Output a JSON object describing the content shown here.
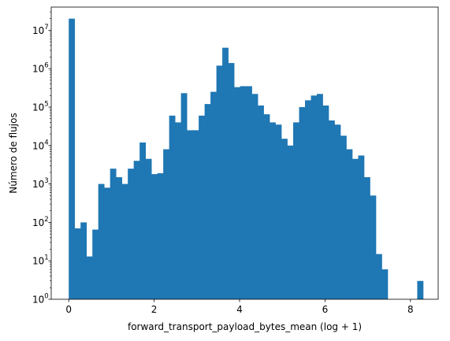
{
  "chart_data": {
    "type": "bar",
    "title": "",
    "xlabel": "forward_transport_payload_bytes_mean (log + 1)",
    "ylabel": "Número de flujos",
    "xlim": [
      -0.41,
      8.65
    ],
    "ylim": [
      1,
      40000000
    ],
    "yscale": "log",
    "grid": false,
    "bar_color": "#1f77b4",
    "bin_start": 0.0,
    "bin_width": 0.1383,
    "counts": [
      20000000,
      70,
      100,
      13,
      65,
      1000,
      800,
      2500,
      1500,
      1000,
      2500,
      4000,
      12000,
      4500,
      1800,
      1900,
      8000,
      60000,
      40000,
      230000,
      25000,
      25000,
      60000,
      120000,
      250000,
      1200000,
      3500000,
      1400000,
      330000,
      350000,
      350000,
      220000,
      110000,
      65000,
      40000,
      35000,
      15000,
      10000,
      40000,
      100000,
      150000,
      200000,
      220000,
      110000,
      45000,
      35000,
      18000,
      8000,
      4500,
      5500,
      1500,
      500,
      15,
      6,
      1,
      1,
      1,
      1,
      1,
      3
    ],
    "x_ticks": [
      0,
      2,
      4,
      6,
      8
    ],
    "y_ticks": [
      {
        "value": 1,
        "base": "10",
        "exp": "0"
      },
      {
        "value": 10,
        "base": "10",
        "exp": "1"
      },
      {
        "value": 100,
        "base": "10",
        "exp": "2"
      },
      {
        "value": 1000,
        "base": "10",
        "exp": "3"
      },
      {
        "value": 10000,
        "base": "10",
        "exp": "4"
      },
      {
        "value": 100000,
        "base": "10",
        "exp": "5"
      },
      {
        "value": 1000000,
        "base": "10",
        "exp": "6"
      },
      {
        "value": 10000000,
        "base": "10",
        "exp": "7"
      }
    ]
  }
}
